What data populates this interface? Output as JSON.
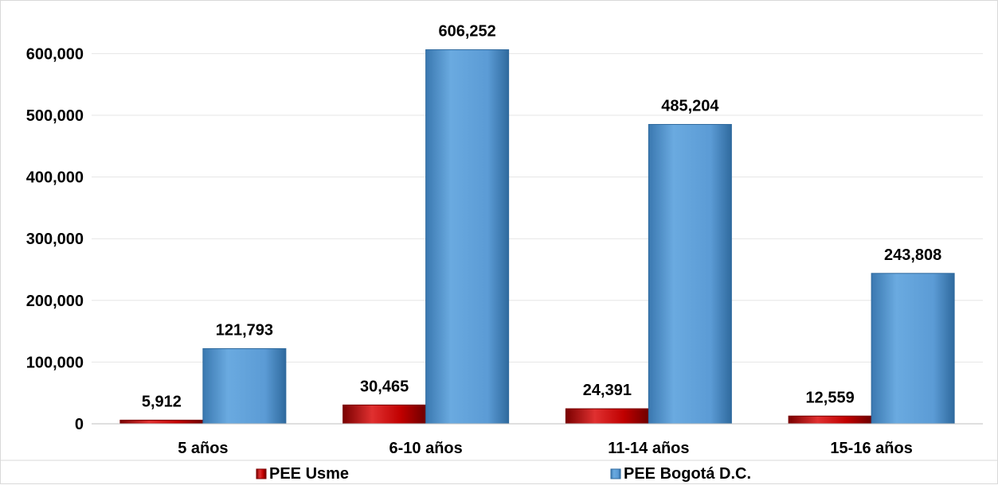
{
  "chart_data": {
    "type": "bar",
    "categories": [
      "5 años",
      "6-10 años",
      "11-14 años",
      "15-16 años"
    ],
    "series": [
      {
        "name": "PEE Usme",
        "values": [
          5912,
          30465,
          24391,
          12559
        ],
        "labels": [
          "5,912",
          "30,465",
          "24,391",
          "12,559"
        ],
        "color": "#c00000"
      },
      {
        "name": "PEE Bogotá D.C.",
        "values": [
          121793,
          606252,
          485204,
          243808
        ],
        "labels": [
          "121,793",
          "606,252",
          "485,204",
          "243,808"
        ],
        "color": "#5b9bd5"
      }
    ],
    "yticks": [
      0,
      100000,
      200000,
      300000,
      400000,
      500000,
      600000
    ],
    "ytick_labels": [
      "0",
      "100,000",
      "200,000",
      "300,000",
      "400,000",
      "500,000",
      "600,000"
    ],
    "ylim": [
      0,
      650000
    ],
    "grid": true,
    "legend_position": "bottom"
  }
}
